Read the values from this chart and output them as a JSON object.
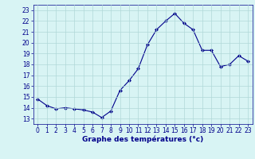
{
  "x": [
    0,
    1,
    2,
    3,
    4,
    5,
    6,
    7,
    8,
    9,
    10,
    11,
    12,
    13,
    14,
    15,
    16,
    17,
    18,
    19,
    20,
    21,
    22,
    23
  ],
  "y": [
    14.8,
    14.2,
    13.9,
    14.0,
    13.9,
    13.8,
    13.6,
    13.1,
    13.7,
    15.6,
    16.5,
    17.6,
    19.8,
    21.2,
    22.0,
    22.7,
    21.8,
    21.2,
    19.3,
    19.3,
    17.8,
    18.0,
    18.8,
    18.3
  ],
  "line_color": "#00008b",
  "marker": "D",
  "marker_size": 2,
  "bg_color": "#d8f4f4",
  "grid_color": "#b0d8d8",
  "xlabel": "Graphe des températures (°c)",
  "xlabel_color": "#00008b",
  "tick_color": "#00008b",
  "xlim": [
    -0.5,
    23.5
  ],
  "ylim": [
    12.5,
    23.5
  ],
  "yticks": [
    13,
    14,
    15,
    16,
    17,
    18,
    19,
    20,
    21,
    22,
    23
  ],
  "xticks": [
    0,
    1,
    2,
    3,
    4,
    5,
    6,
    7,
    8,
    9,
    10,
    11,
    12,
    13,
    14,
    15,
    16,
    17,
    18,
    19,
    20,
    21,
    22,
    23
  ],
  "tick_fontsize": 5.5,
  "xlabel_fontsize": 6.5
}
